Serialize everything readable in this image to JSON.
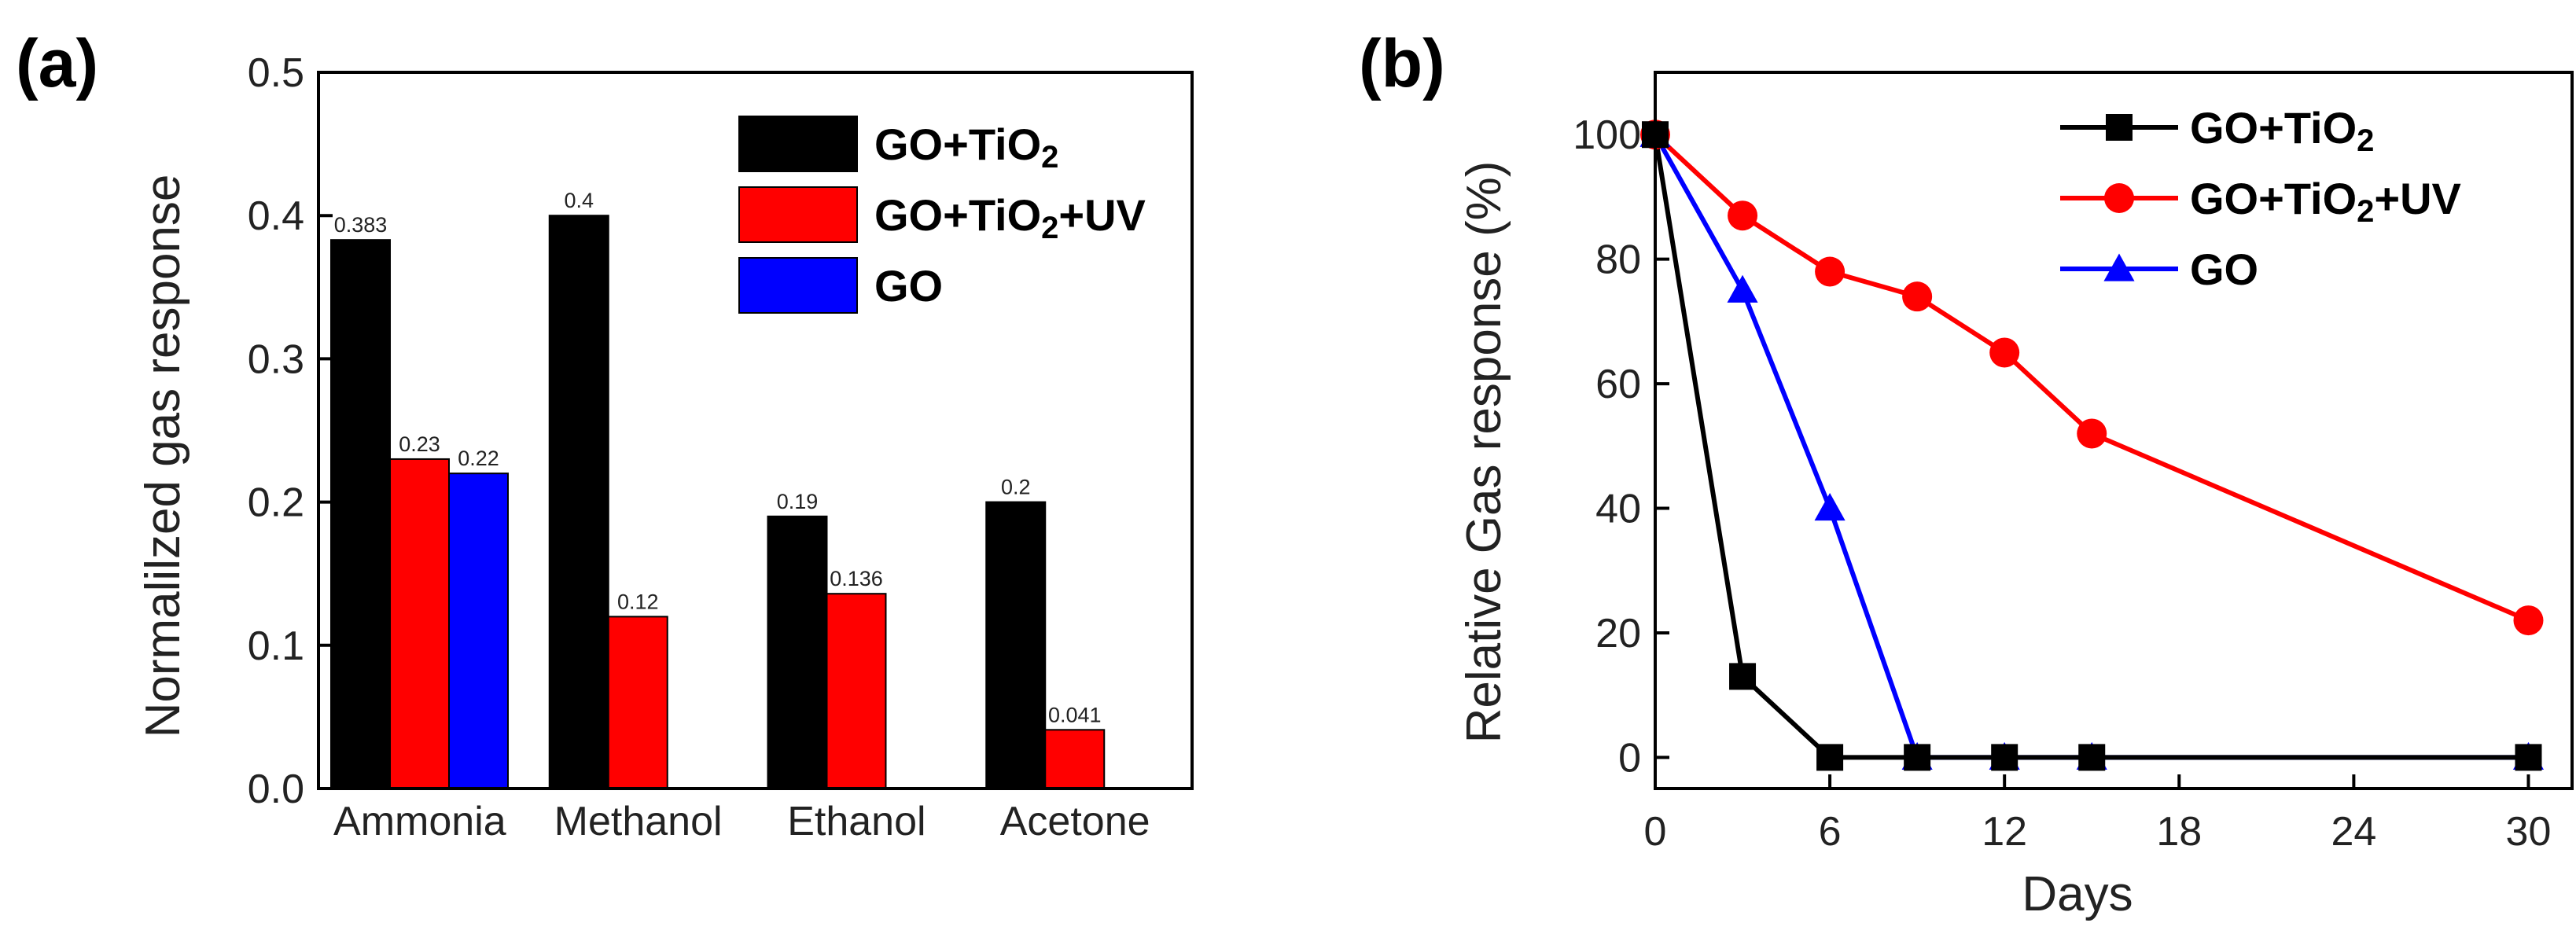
{
  "chart_data": [
    {
      "panel": "(a)",
      "type": "bar",
      "title": "",
      "xlabel": "",
      "ylabel": "Normalilzed gas response",
      "categories": [
        "Ammonia",
        "Methanol",
        "Ethanol",
        "Acetone"
      ],
      "ylim": [
        0,
        0.5
      ],
      "yticks": [
        0.0,
        0.1,
        0.2,
        0.3,
        0.4,
        0.5
      ],
      "ytick_labels": [
        "0.0",
        "0.1",
        "0.2",
        "0.3",
        "0.4",
        "0.5"
      ],
      "grid": false,
      "legend_position": "top-right",
      "series": [
        {
          "name": "GO+TiO2",
          "legend_main": "GO+TiO",
          "legend_sub": "2",
          "legend_tail": "",
          "color": "#000000",
          "values": [
            0.383,
            0.4,
            0.19,
            0.2
          ],
          "labels": [
            "0.383",
            "0.4",
            "0.19",
            "0.2"
          ]
        },
        {
          "name": "GO+TiO2+UV",
          "legend_main": "GO+TiO",
          "legend_sub": "2",
          "legend_tail": "+UV",
          "color": "#ff0000",
          "values": [
            0.23,
            0.12,
            0.136,
            0.041
          ],
          "labels": [
            "0.23",
            "0.12",
            "0.136",
            "0.041"
          ]
        },
        {
          "name": "GO",
          "legend_main": "GO",
          "legend_sub": "",
          "legend_tail": "",
          "color": "#0000ff",
          "values": [
            0.22,
            null,
            null,
            null
          ],
          "labels": [
            "0.22",
            "",
            "",
            ""
          ]
        }
      ]
    },
    {
      "panel": "(b)",
      "type": "line",
      "title": "",
      "xlabel": "Days",
      "ylabel": "Relative Gas response (%)",
      "xlim": [
        0,
        31.5
      ],
      "ylim": [
        -5,
        110
      ],
      "xticks": [
        0,
        6,
        12,
        18,
        24,
        30
      ],
      "xtick_labels": [
        "0",
        "6",
        "12",
        "18",
        "24",
        "30"
      ],
      "yticks": [
        0,
        20,
        40,
        60,
        80,
        100
      ],
      "ytick_labels": [
        "0",
        "20",
        "40",
        "60",
        "80",
        "100"
      ],
      "grid": false,
      "legend_position": "top-right",
      "series": [
        {
          "name": "GO+TiO2",
          "legend_main": "GO+TiO",
          "legend_sub": "2",
          "legend_tail": "",
          "color": "#000000",
          "marker": "square",
          "x": [
            0,
            3,
            6,
            9,
            12,
            15,
            30
          ],
          "y": [
            100,
            13,
            0,
            0,
            0,
            0,
            0
          ]
        },
        {
          "name": "GO+TiO2+UV",
          "legend_main": "GO+TiO",
          "legend_sub": "2",
          "legend_tail": "+UV",
          "color": "#ff0000",
          "marker": "circle",
          "x": [
            0,
            3,
            6,
            9,
            12,
            15,
            30
          ],
          "y": [
            100,
            87,
            78,
            74,
            65,
            52,
            22
          ]
        },
        {
          "name": "GO",
          "legend_main": "GO",
          "legend_sub": "",
          "legend_tail": "",
          "color": "#0000ff",
          "marker": "triangle",
          "x": [
            0,
            3,
            6,
            9,
            12,
            15,
            30
          ],
          "y": [
            100,
            75,
            40,
            0,
            0,
            0,
            0
          ]
        }
      ]
    }
  ]
}
